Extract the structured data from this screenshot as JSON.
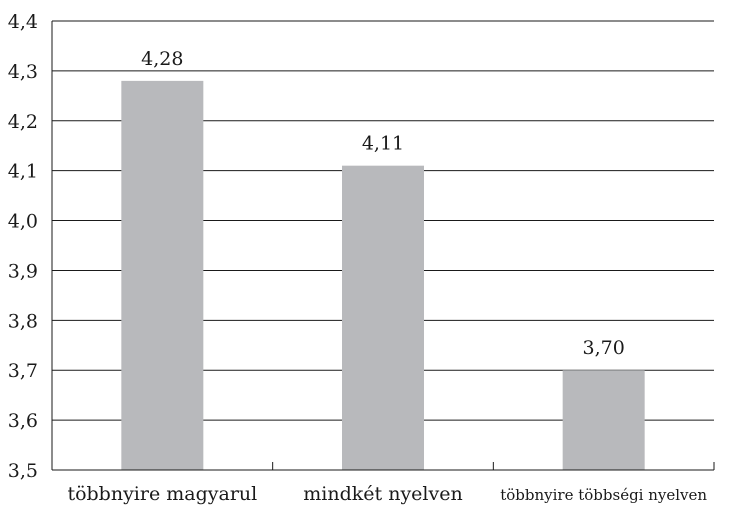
{
  "chart_data": {
    "type": "bar",
    "categories": [
      "többnyire magyarul",
      "mindkét nyelven",
      "többnyire többségi nyelven"
    ],
    "values": [
      4.28,
      4.11,
      3.7
    ],
    "value_labels": [
      "4,28",
      "4,11",
      "3,70"
    ],
    "title": "",
    "xlabel": "",
    "ylabel": "",
    "ylim": [
      3.5,
      4.4
    ],
    "yticks": [
      3.5,
      3.6,
      3.7,
      3.8,
      3.9,
      4.0,
      4.1,
      4.2,
      4.3,
      4.4
    ],
    "ytick_labels": [
      "3,5",
      "3,6",
      "3,7",
      "3,8",
      "3,9",
      "4,0",
      "4,1",
      "4,2",
      "4,3",
      "4,4"
    ],
    "grid": "horizontal",
    "legend": "none",
    "bar_color": "#b8b9bc",
    "grid_color": "#1a1a1a"
  }
}
